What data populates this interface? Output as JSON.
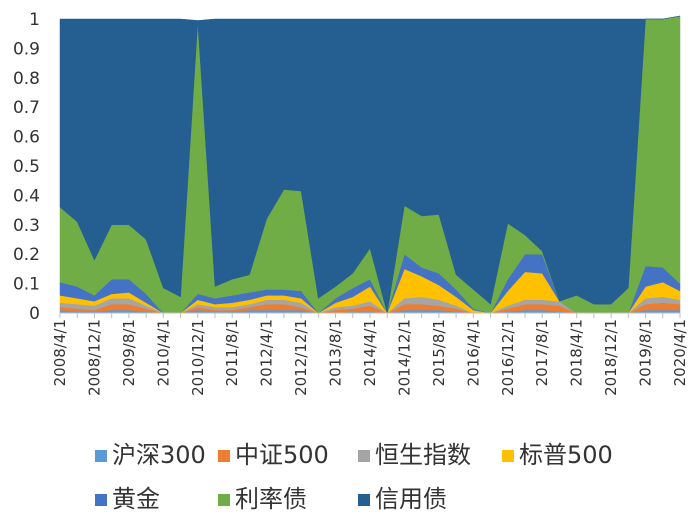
{
  "chart_data": {
    "type": "area",
    "stacked": true,
    "title": "",
    "xlabel": "",
    "ylabel": "",
    "ylim": [
      0,
      1
    ],
    "yticks": [
      "0",
      "0.1",
      "0.2",
      "0.3",
      "0.4",
      "0.5",
      "0.6",
      "0.7",
      "0.8",
      "0.9",
      "1"
    ],
    "grid": false,
    "legend_position": "bottom",
    "x": [
      "2008/4/1",
      "2008/8/1",
      "2008/12/1",
      "2009/4/1",
      "2009/8/1",
      "2009/12/1",
      "2010/4/1",
      "2010/8/1",
      "2010/12/1",
      "2011/4/1",
      "2011/8/1",
      "2011/12/1",
      "2012/4/1",
      "2012/8/1",
      "2012/12/1",
      "2013/4/1",
      "2013/8/1",
      "2013/12/1",
      "2014/4/1",
      "2014/8/1",
      "2014/12/1",
      "2015/4/1",
      "2015/8/1",
      "2015/12/1",
      "2016/4/1",
      "2016/8/1",
      "2016/12/1",
      "2017/4/1",
      "2017/8/1",
      "2017/12/1",
      "2018/4/1",
      "2018/8/1",
      "2018/12/1",
      "2019/4/1",
      "2019/8/1",
      "2019/12/1",
      "2020/4/1"
    ],
    "xticks_shown": [
      "2008/4/1",
      "2008/12/1",
      "2009/8/1",
      "2010/4/1",
      "2010/12/1",
      "2011/8/1",
      "2012/4/1",
      "2012/12/1",
      "2013/8/1",
      "2014/4/1",
      "2014/12/1",
      "2015/8/1",
      "2016/4/1",
      "2016/12/1",
      "2017/8/1",
      "2018/4/1",
      "2018/12/1",
      "2019/8/1",
      "2020/4/1"
    ],
    "series": [
      {
        "name": "沪深300",
        "color": "#5b9bd5",
        "values": [
          0.01,
          0.005,
          0.005,
          0.01,
          0.01,
          0.005,
          0,
          0,
          0.01,
          0.005,
          0.005,
          0.01,
          0.01,
          0.01,
          0.01,
          0,
          0,
          0.005,
          0.005,
          0,
          0.01,
          0.01,
          0.01,
          0.005,
          0,
          0,
          0.005,
          0.01,
          0.01,
          0.005,
          0,
          0,
          0,
          0,
          0.01,
          0.01,
          0.01
        ]
      },
      {
        "name": "中证500",
        "color": "#ed7d31",
        "values": [
          0.01,
          0.01,
          0.005,
          0.02,
          0.02,
          0.01,
          0,
          0,
          0.01,
          0.005,
          0.005,
          0.01,
          0.02,
          0.02,
          0.01,
          0,
          0.01,
          0.01,
          0.02,
          0,
          0.02,
          0.02,
          0.015,
          0.01,
          0,
          0,
          0.01,
          0.02,
          0.02,
          0.02,
          0,
          0,
          0,
          0,
          0.02,
          0.025,
          0.02
        ]
      },
      {
        "name": "恒生指数",
        "color": "#a5a5a5",
        "values": [
          0.015,
          0.015,
          0.015,
          0.02,
          0.02,
          0.01,
          0,
          0,
          0.01,
          0.01,
          0.01,
          0.01,
          0.015,
          0.015,
          0.015,
          0,
          0.01,
          0.01,
          0.015,
          0,
          0.02,
          0.025,
          0.02,
          0.01,
          0,
          0,
          0.01,
          0.015,
          0.015,
          0.015,
          0,
          0,
          0,
          0,
          0.02,
          0.02,
          0.015
        ]
      },
      {
        "name": "标普500",
        "color": "#ffc000",
        "values": [
          0.025,
          0.02,
          0.015,
          0.015,
          0.02,
          0.01,
          0,
          0,
          0.015,
          0.01,
          0.015,
          0.015,
          0.015,
          0.015,
          0.015,
          0,
          0.015,
          0.03,
          0.05,
          0,
          0.1,
          0.07,
          0.05,
          0.03,
          0.01,
          0,
          0.05,
          0.095,
          0.09,
          0,
          0,
          0,
          0,
          0,
          0.04,
          0.05,
          0.03
        ]
      },
      {
        "name": "黄金",
        "color": "#4472c4",
        "values": [
          0.045,
          0.04,
          0.02,
          0.05,
          0.045,
          0.03,
          0,
          0,
          0.02,
          0.02,
          0.025,
          0.025,
          0.02,
          0.02,
          0.025,
          0,
          0.015,
          0.03,
          0.025,
          0,
          0.05,
          0.03,
          0.04,
          0.025,
          0.005,
          0,
          0.04,
          0.06,
          0.065,
          0,
          0,
          0,
          0,
          0,
          0.07,
          0.05,
          0.025
        ]
      },
      {
        "name": "利率债",
        "color": "#70ad47",
        "values": [
          0.255,
          0.22,
          0.12,
          0.185,
          0.185,
          0.185,
          0.085,
          0.055,
          0.925,
          0.04,
          0.055,
          0.06,
          0.24,
          0.34,
          0.34,
          0.05,
          0.04,
          0.05,
          0.105,
          0,
          0.165,
          0.175,
          0.2,
          0.05,
          0.065,
          0.03,
          0.19,
          0.065,
          0.01,
          0,
          0.06,
          0.03,
          0.03,
          0.085,
          0.84,
          0.845,
          0.91
        ]
      },
      {
        "name": "信用债",
        "color": "#255e91",
        "values": [
          0.64,
          0.69,
          0.82,
          0.7,
          0.7,
          0.75,
          0.915,
          0.945,
          0.005,
          0.91,
          0.885,
          0.87,
          0.68,
          0.58,
          0.585,
          0.95,
          0.91,
          0.865,
          0.78,
          1,
          0.635,
          0.67,
          0.665,
          0.87,
          0.92,
          0.97,
          0.695,
          0.735,
          0.79,
          0.96,
          0.94,
          0.97,
          0.97,
          0.915,
          0,
          0,
          0
        ]
      }
    ],
    "legend_rows": [
      [
        "沪深300",
        "中证500",
        "恒生指数",
        "标普500"
      ],
      [
        "黄金",
        "利率债",
        "信用债"
      ]
    ]
  }
}
